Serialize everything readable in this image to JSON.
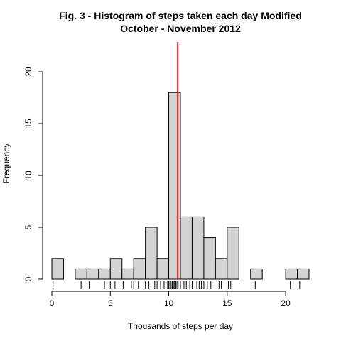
{
  "chart_data": {
    "type": "bar",
    "title": "Fig. 3 - Histogram of steps taken each day Modified",
    "subtitle": "October - November 2012",
    "xlabel": "Thousands of steps per day",
    "ylabel": "Frequency",
    "xlim": [
      0,
      22
    ],
    "ylim": [
      0,
      20
    ],
    "x_ticks": [
      "0",
      "5",
      "10",
      "15",
      "20"
    ],
    "y_ticks": [
      "0",
      "5",
      "10",
      "15",
      "20"
    ],
    "bin_width": 1,
    "bins": [
      {
        "start": 0,
        "end": 1,
        "count": 2
      },
      {
        "start": 1,
        "end": 2,
        "count": 0
      },
      {
        "start": 2,
        "end": 3,
        "count": 1
      },
      {
        "start": 3,
        "end": 4,
        "count": 1
      },
      {
        "start": 4,
        "end": 5,
        "count": 1
      },
      {
        "start": 5,
        "end": 6,
        "count": 2
      },
      {
        "start": 6,
        "end": 7,
        "count": 1
      },
      {
        "start": 7,
        "end": 8,
        "count": 2
      },
      {
        "start": 8,
        "end": 9,
        "count": 5
      },
      {
        "start": 9,
        "end": 10,
        "count": 2
      },
      {
        "start": 10,
        "end": 11,
        "count": 18
      },
      {
        "start": 11,
        "end": 12,
        "count": 6
      },
      {
        "start": 12,
        "end": 13,
        "count": 6
      },
      {
        "start": 13,
        "end": 14,
        "count": 4
      },
      {
        "start": 14,
        "end": 15,
        "count": 2
      },
      {
        "start": 15,
        "end": 16,
        "count": 5
      },
      {
        "start": 16,
        "end": 17,
        "count": 0
      },
      {
        "start": 17,
        "end": 18,
        "count": 1
      },
      {
        "start": 18,
        "end": 19,
        "count": 0
      },
      {
        "start": 19,
        "end": 20,
        "count": 0
      },
      {
        "start": 20,
        "end": 21,
        "count": 1
      },
      {
        "start": 21,
        "end": 22,
        "count": 1
      }
    ],
    "rug": [
      0.1,
      2.5,
      3.2,
      4.5,
      5.0,
      5.4,
      6.1,
      6.8,
      7.0,
      7.4,
      8.0,
      8.3,
      8.8,
      9.0,
      9.3,
      9.6,
      9.9,
      10.0,
      10.1,
      10.2,
      10.3,
      10.4,
      10.5,
      10.6,
      10.7,
      10.8,
      11.0,
      11.3,
      11.5,
      11.8,
      12.0,
      12.4,
      12.6,
      12.8,
      13.0,
      13.3,
      13.6,
      14.3,
      14.5,
      15.1,
      15.3,
      17.4,
      20.4,
      21.2
    ],
    "mean_line": {
      "x": 10.77,
      "color": "#dd0000"
    },
    "bar_fill": "#d3d3d3",
    "bar_stroke": "#000000",
    "grid": false,
    "legend": "none"
  }
}
